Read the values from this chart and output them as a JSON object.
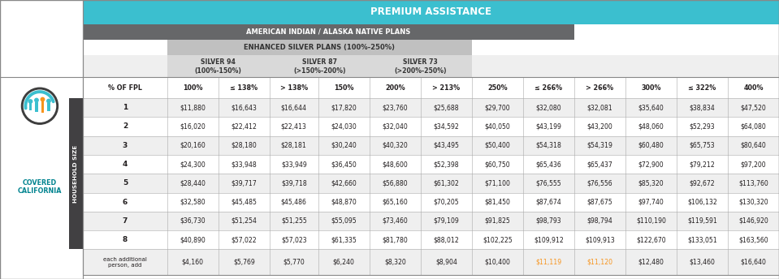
{
  "title": "PREMIUM ASSISTANCE",
  "subtitle1": "AMERICAN INDIAN / ALASKA NATIVE PLANS",
  "subtitle2": "ENHANCED SILVER PLANS (100%-250%)",
  "col_headers": [
    "% OF FPL",
    "100%",
    "≤ 138%",
    "> 138%",
    "150%",
    "200%",
    "> 213%",
    "250%",
    "≤ 266%",
    "> 266%",
    "300%",
    "≤ 322%",
    "400%"
  ],
  "silver94_label": "SILVER 94\n(100%-150%)",
  "silver87_label": "SILVER 87\n(>150%-200%)",
  "silver73_label": "SILVER 73\n(>200%-250%)",
  "row_headers": [
    "1",
    "2",
    "3",
    "4",
    "5",
    "6",
    "7",
    "8"
  ],
  "data": [
    [
      "$11,880",
      "$16,643",
      "$16,644",
      "$17,820",
      "$23,760",
      "$25,688",
      "$29,700",
      "$32,080",
      "$32,081",
      "$35,640",
      "$38,834",
      "$47,520"
    ],
    [
      "$16,020",
      "$22,412",
      "$22,413",
      "$24,030",
      "$32,040",
      "$34,592",
      "$40,050",
      "$43,199",
      "$43,200",
      "$48,060",
      "$52,293",
      "$64,080"
    ],
    [
      "$20,160",
      "$28,180",
      "$28,181",
      "$30,240",
      "$40,320",
      "$43,495",
      "$50,400",
      "$54,318",
      "$54,319",
      "$60,480",
      "$65,753",
      "$80,640"
    ],
    [
      "$24,300",
      "$33,948",
      "$33,949",
      "$36,450",
      "$48,600",
      "$52,398",
      "$60,750",
      "$65,436",
      "$65,437",
      "$72,900",
      "$79,212",
      "$97,200"
    ],
    [
      "$28,440",
      "$39,717",
      "$39,718",
      "$42,660",
      "$56,880",
      "$61,302",
      "$71,100",
      "$76,555",
      "$76,556",
      "$85,320",
      "$92,672",
      "$113,760"
    ],
    [
      "$32,580",
      "$45,485",
      "$45,486",
      "$48,870",
      "$65,160",
      "$70,205",
      "$81,450",
      "$87,674",
      "$87,675",
      "$97,740",
      "$106,132",
      "$130,320"
    ],
    [
      "$36,730",
      "$51,254",
      "$51,255",
      "$55,095",
      "$73,460",
      "$79,109",
      "$91,825",
      "$98,793",
      "$98,794",
      "$110,190",
      "$119,591",
      "$146,920"
    ],
    [
      "$40,890",
      "$57,022",
      "$57,023",
      "$61,335",
      "$81,780",
      "$88,012",
      "$102,225",
      "$109,912",
      "$109,913",
      "$122,670",
      "$133,051",
      "$163,560"
    ]
  ],
  "extra_row": [
    "$4,160",
    "$5,769",
    "$5,770",
    "$6,240",
    "$8,320",
    "$8,904",
    "$10,400",
    "$11,119",
    "$11,120",
    "$12,480",
    "$13,460",
    "$16,640"
  ],
  "colors": {
    "teal": "#3bbfcf",
    "dark_gray": "#666769",
    "medium_gray": "#c0c0c0",
    "light_gray": "#d9d9d9",
    "very_light_gray": "#efefef",
    "white": "#ffffff",
    "black": "#231f20",
    "orange": "#f7941d",
    "covered_blue": "#00838f",
    "dark_bar": "#414042",
    "border": "#aaaaaa",
    "row_stripe": "#f4f4f4"
  },
  "col_widths_rel": [
    1.35,
    0.82,
    0.82,
    0.78,
    0.82,
    0.82,
    0.82,
    0.82,
    0.82,
    0.82,
    0.82,
    0.82,
    0.82
  ]
}
